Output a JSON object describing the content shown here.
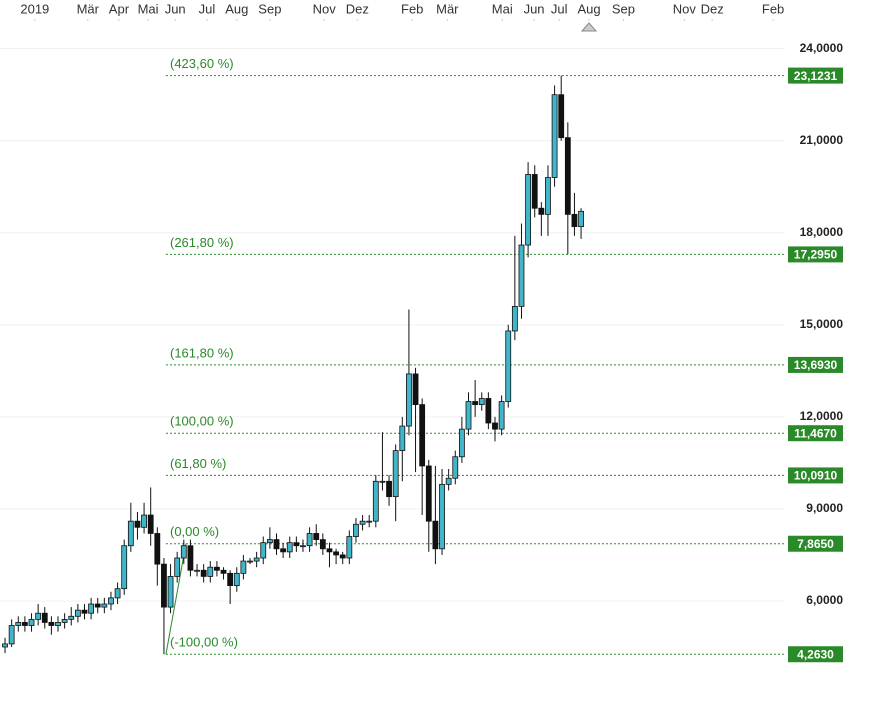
{
  "chart_data": {
    "type": "candlestick",
    "up_color": "#41b6cb",
    "down_color": "#111111",
    "fib_color": "#2a8a2a",
    "grid": true,
    "xlim": [
      -0.76,
      117.8
    ],
    "xticks": [
      {
        "value": 4.5,
        "label": "2019"
      },
      {
        "value": 12.5,
        "label": "Mär"
      },
      {
        "value": 17.2,
        "label": "Apr"
      },
      {
        "value": 21.6,
        "label": "Mai"
      },
      {
        "value": 25.7,
        "label": "Jun"
      },
      {
        "value": 30.5,
        "label": "Jul"
      },
      {
        "value": 35,
        "label": "Aug"
      },
      {
        "value": 40,
        "label": "Sep"
      },
      {
        "value": 48.2,
        "label": "Nov"
      },
      {
        "value": 53.2,
        "label": "Dez"
      },
      {
        "value": 61.5,
        "label": "Feb"
      },
      {
        "value": 66.8,
        "label": "Mär"
      },
      {
        "value": 75.1,
        "label": "Mai"
      },
      {
        "value": 79.9,
        "label": "Jun"
      },
      {
        "value": 83.7,
        "label": "Jul"
      },
      {
        "value": 88.2,
        "label": "Aug"
      },
      {
        "value": 93.4,
        "label": "Sep"
      },
      {
        "value": 102.6,
        "label": "Nov"
      },
      {
        "value": 106.8,
        "label": "Dez"
      },
      {
        "value": 116,
        "label": "Feb"
      }
    ],
    "ylim": [
      3,
      25
    ],
    "yticks": [
      {
        "value": 6,
        "label": "6,0000"
      },
      {
        "value": 9,
        "label": "9,0000"
      },
      {
        "value": 12,
        "label": "12,0000"
      },
      {
        "value": 15,
        "label": "15,0000"
      },
      {
        "value": 18,
        "label": "18,0000"
      },
      {
        "value": 21,
        "label": "21,0000"
      },
      {
        "value": 24,
        "label": "24,0000"
      }
    ],
    "open": [
      4.5,
      4.6,
      5.2,
      5.3,
      5.2,
      5.4,
      5.6,
      5.3,
      5.2,
      5.3,
      5.4,
      5.5,
      5.7,
      5.6,
      5.9,
      5.8,
      5.9,
      6.1,
      6.4,
      7.8,
      8.6,
      8.4,
      8.8,
      8.2,
      7.2,
      5.8,
      6.8,
      7.4,
      7.8,
      7.0,
      7.0,
      6.8,
      7.1,
      7.0,
      6.9,
      6.5,
      6.9,
      7.3,
      7.3,
      7.4,
      7.9,
      8.0,
      7.7,
      7.6,
      7.9,
      7.8,
      7.8,
      8.2,
      8.0,
      7.7,
      7.6,
      7.5,
      7.4,
      8.1,
      8.5,
      8.6,
      8.6,
      9.9,
      9.9,
      9.4,
      10.9,
      11.7,
      13.4,
      12.4,
      10.4,
      8.6,
      7.7,
      9.8,
      10.0,
      10.7,
      11.6,
      12.5,
      12.4,
      12.6,
      11.8,
      11.6,
      12.5,
      14.8,
      15.6,
      17.6,
      19.9,
      18.8,
      18.6,
      19.8,
      22.5,
      21.1,
      18.6,
      18.2
    ],
    "high": [
      4.8,
      5.4,
      5.5,
      5.5,
      5.6,
      5.9,
      5.8,
      5.5,
      5.5,
      5.6,
      5.8,
      5.9,
      5.9,
      6.1,
      6.1,
      6.1,
      6.3,
      6.6,
      8.0,
      9.2,
      8.9,
      9.2,
      9.7,
      8.4,
      7.4,
      7.2,
      7.6,
      8.0,
      8.0,
      7.2,
      7.2,
      7.3,
      7.3,
      7.1,
      7.0,
      7.1,
      7.5,
      7.4,
      7.6,
      8.1,
      8.4,
      8.2,
      7.9,
      8.1,
      8.1,
      8.0,
      8.4,
      8.5,
      8.2,
      7.9,
      7.7,
      7.6,
      8.3,
      8.7,
      8.8,
      8.8,
      10.1,
      11.5,
      10.1,
      11.1,
      12.0,
      15.5,
      13.6,
      12.6,
      10.6,
      10.4,
      10.3,
      10.3,
      10.9,
      12.0,
      12.8,
      13.2,
      12.8,
      12.8,
      12.0,
      12.7,
      15.0,
      17.9,
      18.3,
      20.3,
      20.2,
      19.0,
      20.2,
      22.8,
      23.1231,
      21.6,
      19.3,
      18.8
    ],
    "low": [
      4.3,
      4.5,
      5.0,
      5.0,
      5.0,
      5.2,
      5.1,
      4.9,
      5.0,
      5.1,
      5.2,
      5.3,
      5.4,
      5.4,
      5.6,
      5.6,
      5.7,
      5.9,
      6.2,
      7.6,
      8.0,
      8.2,
      7.8,
      6.5,
      4.263,
      5.6,
      6.6,
      7.2,
      6.8,
      6.8,
      6.6,
      6.6,
      6.8,
      6.7,
      5.9,
      6.3,
      6.7,
      7.2,
      7.1,
      7.2,
      7.7,
      7.5,
      7.4,
      7.4,
      7.6,
      7.6,
      7.6,
      7.8,
      7.5,
      7.1,
      7.2,
      7.2,
      7.2,
      7.9,
      8.3,
      8.4,
      8.4,
      9.6,
      9.1,
      8.6,
      9.9,
      11.4,
      10.2,
      8.8,
      7.6,
      7.2,
      7.5,
      9.6,
      9.8,
      10.5,
      11.4,
      12.0,
      12.2,
      11.6,
      11.2,
      11.4,
      12.3,
      14.5,
      15.2,
      17.2,
      18.5,
      17.9,
      17.9,
      19.5,
      21.0,
      17.3,
      17.9,
      17.8
    ],
    "close": [
      4.6,
      5.2,
      5.3,
      5.2,
      5.4,
      5.6,
      5.3,
      5.2,
      5.3,
      5.4,
      5.5,
      5.7,
      5.6,
      5.9,
      5.8,
      5.9,
      6.1,
      6.4,
      7.8,
      8.6,
      8.4,
      8.8,
      8.2,
      7.2,
      5.8,
      6.8,
      7.4,
      7.8,
      7.0,
      7.0,
      6.8,
      7.1,
      7.0,
      6.9,
      6.5,
      6.9,
      7.3,
      7.3,
      7.4,
      7.9,
      8.0,
      7.7,
      7.6,
      7.9,
      7.8,
      7.8,
      8.2,
      8.0,
      7.7,
      7.6,
      7.5,
      7.4,
      8.1,
      8.5,
      8.6,
      8.6,
      9.9,
      9.9,
      9.4,
      10.9,
      11.7,
      13.4,
      12.4,
      10.4,
      8.6,
      7.7,
      9.8,
      10.0,
      10.7,
      11.6,
      12.5,
      12.4,
      12.6,
      11.8,
      11.6,
      12.5,
      14.8,
      15.6,
      17.6,
      19.9,
      18.8,
      18.6,
      19.8,
      22.5,
      21.1,
      18.6,
      18.2,
      18.7
    ],
    "fib_levels": [
      {
        "label": "(423,60 %)",
        "value": 23.1231,
        "value_label": "23,1231"
      },
      {
        "label": "(261,80 %)",
        "value": 17.295,
        "value_label": "17,2950"
      },
      {
        "label": "(161,80 %)",
        "value": 13.693,
        "value_label": "13,6930"
      },
      {
        "label": "(100,00 %)",
        "value": 11.467,
        "value_label": "11,4670"
      },
      {
        "label": "(61,80 %)",
        "value": 10.091,
        "value_label": "10,0910"
      },
      {
        "label": "(0,00 %)",
        "value": 7.865,
        "value_label": "7,8650"
      },
      {
        "label": "(-100,00 %)",
        "value": 4.263,
        "value_label": "4,2630"
      }
    ]
  }
}
